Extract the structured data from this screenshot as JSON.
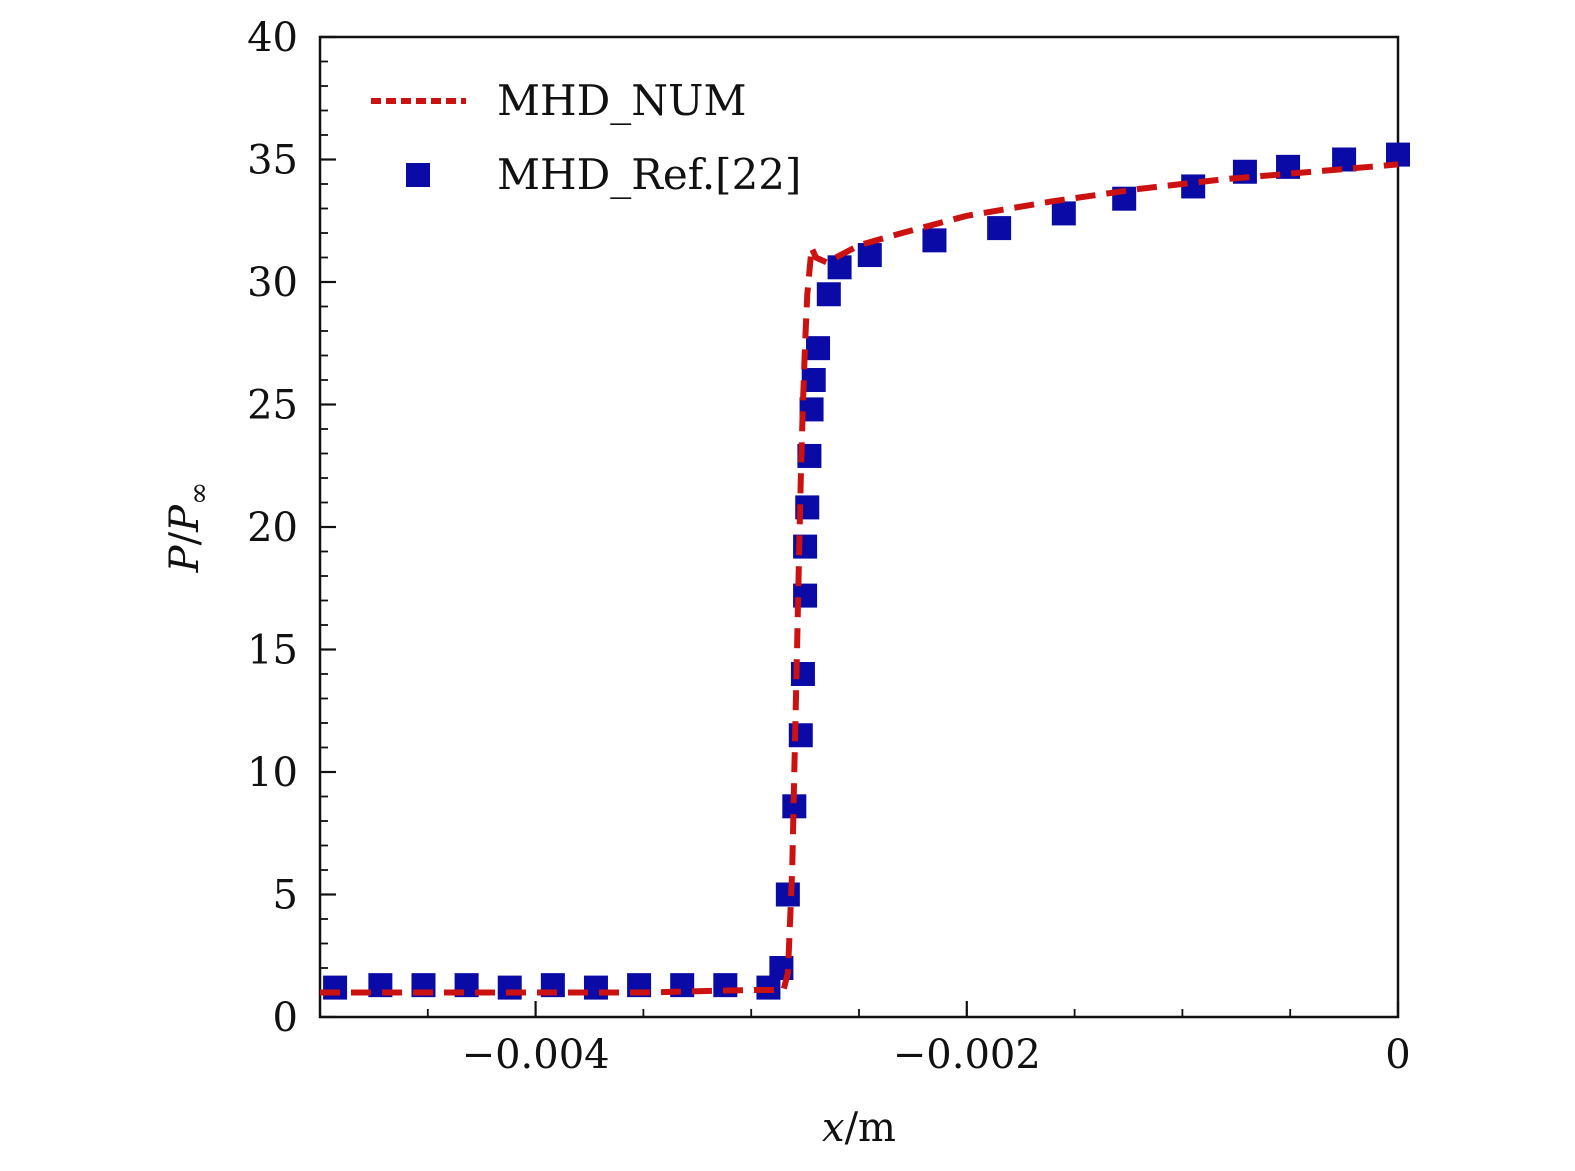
{
  "chart_data": {
    "type": "line",
    "title": "",
    "xlabel": "x/m",
    "ylabel": "P/P∞",
    "xlabel_parts": {
      "var": "x",
      "unit": "/m"
    },
    "ylabel_parts": {
      "num": "P",
      "sep": "/",
      "den": "P",
      "sub": "∞"
    },
    "xlim": [
      -0.005,
      0
    ],
    "ylim": [
      0,
      40
    ],
    "xticks": [
      -0.004,
      -0.002,
      0
    ],
    "xtick_labels": [
      "−0.004",
      "−0.002",
      "0"
    ],
    "yticks": [
      0,
      5,
      10,
      15,
      20,
      25,
      30,
      35,
      40
    ],
    "ytick_labels": [
      "0",
      "5",
      "10",
      "15",
      "20",
      "25",
      "30",
      "35",
      "40"
    ],
    "grid": false,
    "legend_position": "top-left",
    "series": [
      {
        "name": "MHD_NUM",
        "style": "dashed-line",
        "color": "#cc1111",
        "x": [
          -0.005,
          -0.0045,
          -0.004,
          -0.0035,
          -0.003,
          -0.0029,
          -0.00285,
          -0.00283,
          -0.00281,
          -0.0028,
          -0.00279,
          -0.00278,
          -0.00277,
          -0.00276,
          -0.00275,
          -0.00274,
          -0.00272,
          -0.0027,
          -0.00265,
          -0.0025,
          -0.0023,
          -0.002,
          -0.0016,
          -0.0012,
          -0.0008,
          -0.0004,
          0
        ],
        "y": [
          1.0,
          1.0,
          1.0,
          1.0,
          1.1,
          1.1,
          1.1,
          1.8,
          6.0,
          10.0,
          14.0,
          18.0,
          22.0,
          25.0,
          27.5,
          29.5,
          31.4,
          31.0,
          30.8,
          31.5,
          32.0,
          32.7,
          33.3,
          33.8,
          34.2,
          34.5,
          34.8
        ]
      },
      {
        "name": "MHD_Ref.[22]",
        "style": "square-markers",
        "color": "#0a0aa6",
        "x": [
          -0.00493,
          -0.00472,
          -0.00452,
          -0.00432,
          -0.00412,
          -0.00392,
          -0.00372,
          -0.00352,
          -0.00332,
          -0.00312,
          -0.00292,
          -0.00286,
          -0.00283,
          -0.0028,
          -0.00277,
          -0.00276,
          -0.00275,
          -0.00275,
          -0.00274,
          -0.00273,
          -0.00272,
          -0.00271,
          -0.00269,
          -0.00264,
          -0.00259,
          -0.00245,
          -0.00215,
          -0.00185,
          -0.00155,
          -0.00127,
          -0.00095,
          -0.00071,
          -0.00051,
          -0.00025,
          0
        ],
        "y": [
          1.2,
          1.3,
          1.3,
          1.3,
          1.2,
          1.3,
          1.2,
          1.3,
          1.3,
          1.3,
          1.2,
          2.0,
          5.0,
          8.6,
          11.5,
          14.0,
          17.2,
          19.2,
          20.8,
          22.9,
          24.8,
          26.0,
          27.3,
          29.5,
          30.6,
          31.1,
          31.7,
          32.2,
          32.8,
          33.4,
          33.9,
          34.5,
          34.7,
          35.0,
          35.2
        ]
      }
    ]
  }
}
